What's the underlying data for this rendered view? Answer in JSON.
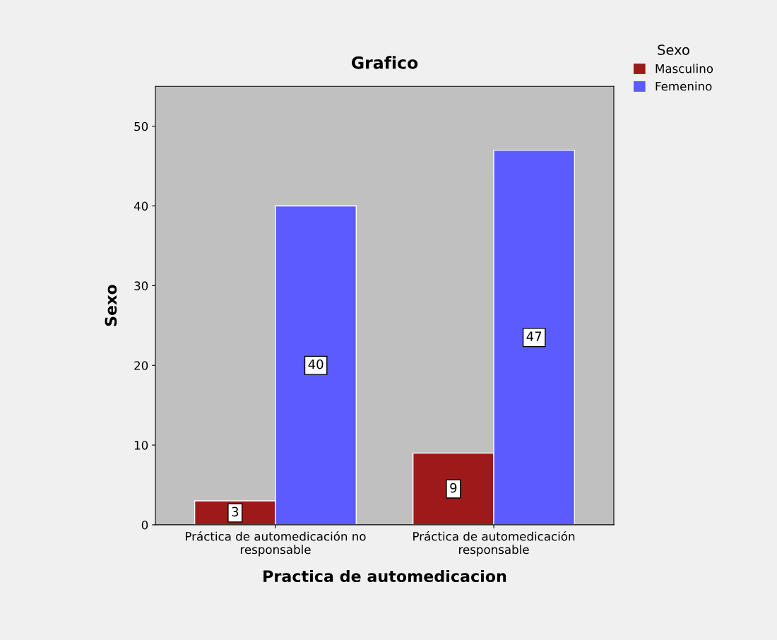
{
  "chart_data": {
    "type": "bar",
    "title": "Grafico",
    "xlabel": "Practica de automedicacion",
    "ylabel": "Sexo",
    "legend_title": "Sexo",
    "categories": [
      "Práctica de automedicación no\nresponsable",
      "Práctica de automedicación\nresponsable"
    ],
    "series": [
      {
        "name": "Masculino",
        "color": "#9e1a1a",
        "values": [
          3,
          9
        ]
      },
      {
        "name": "Femenino",
        "color": "#5b5bff",
        "values": [
          40,
          47
        ]
      }
    ],
    "ylim": [
      0,
      55
    ],
    "yticks": [
      0,
      10,
      20,
      30,
      40,
      50
    ],
    "grid": false,
    "legend": "top right",
    "data_labels": true
  }
}
